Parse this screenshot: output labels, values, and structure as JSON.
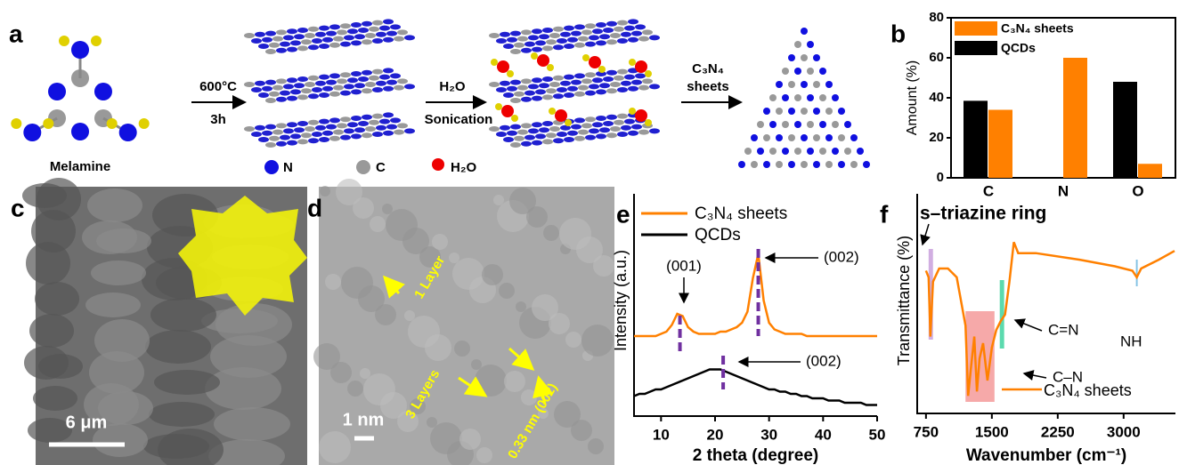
{
  "figure_a": {
    "label": "a",
    "molecule": "Melamine",
    "step1_top": "600°C",
    "step1_bottom": "3h",
    "step2_top": "H₂O",
    "step2_bottom": "Sonication",
    "step3": [
      "C₃N₄",
      "sheets"
    ],
    "legend": [
      "N",
      "C",
      "H₂O"
    ]
  },
  "figure_c": {
    "label": "c",
    "scale_bar": "6 μm"
  },
  "figure_d": {
    "label": "d",
    "annotations": [
      "1 Layer",
      "3 Layers",
      "0.33 nm (002)"
    ],
    "scale_bar": "1 nm"
  },
  "chart_data": [
    {
      "type": "bar",
      "panel_label": "b",
      "ylabel": "Amount (%)",
      "categories": [
        "C",
        "N",
        "O"
      ],
      "series": [
        {
          "name": "C₃N₄ sheets",
          "color": "#ff8000",
          "values": [
            34,
            60,
            7
          ]
        },
        {
          "name": "QCDs",
          "color": "#000000",
          "values": [
            38.5,
            0,
            48
          ]
        }
      ],
      "ylim": [
        0,
        80
      ],
      "yticks": [
        0,
        20,
        40,
        60,
        80
      ],
      "legend": "top-left"
    },
    {
      "type": "line",
      "panel_label": "e",
      "xlabel": "2 theta (degree)",
      "ylabel": "Intensity (a.u.)",
      "x": [
        5,
        6,
        7,
        8,
        9,
        10,
        11,
        12,
        13,
        14,
        15,
        16,
        17,
        18,
        19,
        20,
        21,
        22,
        23,
        24,
        25,
        26,
        27,
        28,
        29,
        30,
        31,
        32,
        33,
        34,
        35,
        36,
        37,
        38,
        39,
        40,
        41,
        42,
        43,
        44,
        45,
        46,
        47,
        48,
        49,
        50
      ],
      "series": [
        {
          "name": "C₃N₄ sheets",
          "color": "#ff8000",
          "values": [
            36,
            36,
            36,
            36,
            36,
            37,
            38,
            41,
            46,
            45,
            40,
            38,
            37,
            37,
            37,
            37,
            38,
            38,
            39,
            40,
            42,
            47,
            62,
            73,
            52,
            42,
            39,
            38,
            37,
            37,
            37,
            37,
            36,
            36,
            36,
            36,
            36,
            36,
            36,
            36,
            36,
            36,
            36,
            36,
            36,
            36
          ]
        },
        {
          "name": "QCDs",
          "color": "#000000",
          "values": [
            9,
            10,
            10,
            11,
            12,
            12,
            13,
            14,
            15,
            16,
            17,
            18,
            19,
            20,
            21,
            21,
            21,
            20,
            19,
            18,
            17,
            16,
            15,
            14,
            13,
            12,
            12,
            11,
            11,
            10,
            10,
            9,
            9,
            8,
            8,
            8,
            7,
            7,
            7,
            6,
            6,
            6,
            6,
            5,
            5,
            5
          ]
        }
      ],
      "xlim": [
        5,
        50
      ],
      "xticks": [
        10,
        20,
        30,
        40,
        50
      ],
      "ylim": [
        0,
        100
      ],
      "annotations": [
        "(001)",
        "(002)",
        "(002)"
      ],
      "legend": "top-left"
    },
    {
      "type": "line",
      "panel_label": "f",
      "xlabel": "Wavenumber (cm⁻¹)",
      "ylabel": "Transmittance (%)",
      "x": [
        750,
        780,
        800,
        830,
        900,
        1000,
        1100,
        1200,
        1230,
        1260,
        1300,
        1330,
        1360,
        1400,
        1450,
        1500,
        1550,
        1600,
        1650,
        1700,
        1750,
        1800,
        2000,
        2500,
        2900,
        3100,
        3150,
        3200,
        3400,
        3580
      ],
      "series": [
        {
          "name": "C₃N₄ sheets",
          "color": "#ff8000",
          "values": [
            65,
            62,
            35,
            60,
            66,
            66,
            62,
            40,
            8,
            20,
            35,
            10,
            25,
            32,
            15,
            30,
            38,
            42,
            45,
            60,
            78,
            73,
            73,
            70,
            67,
            65,
            62,
            66,
            70,
            74
          ]
        }
      ],
      "xlim": [
        650,
        3590
      ],
      "xticks": [
        750,
        1500,
        2250,
        3000
      ],
      "ylim": [
        0,
        100
      ],
      "annotations": [
        "s–triazine ring",
        "C=N",
        "C–N",
        "NH"
      ],
      "legend": "bottom-right"
    }
  ]
}
